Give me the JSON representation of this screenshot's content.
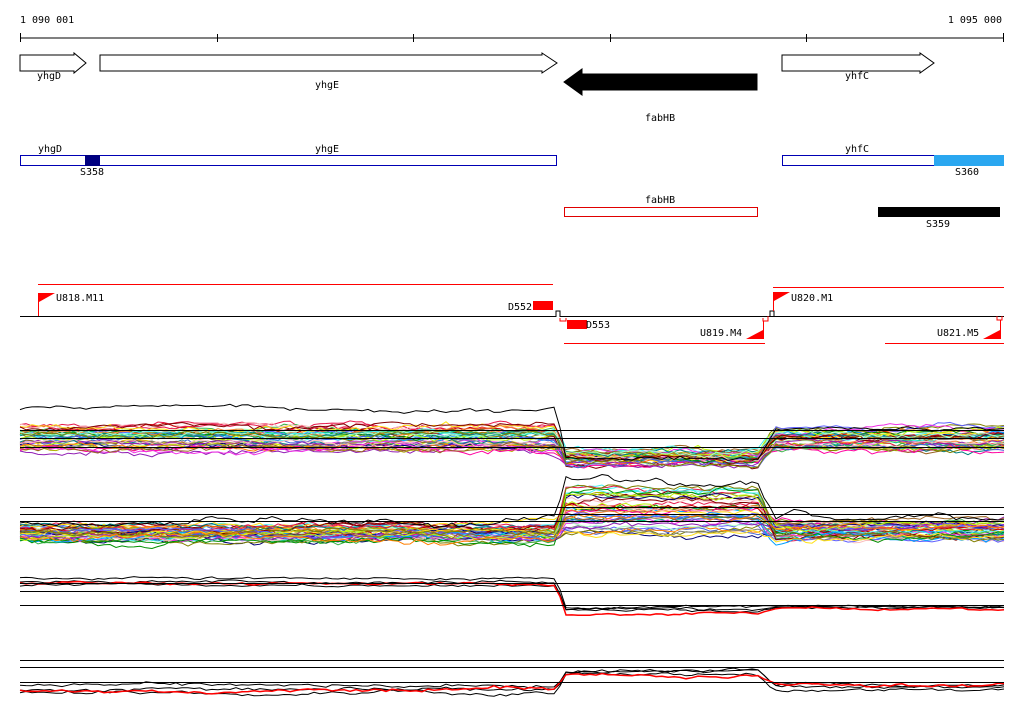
{
  "ruler": {
    "start_label": "1 090 001",
    "end_label": "1 095 000"
  },
  "genes": [
    {
      "name": "yhgD",
      "strand": "+",
      "style": "outline"
    },
    {
      "name": "yhgE",
      "strand": "+",
      "style": "outline"
    },
    {
      "name": "fabHB",
      "strand": "-",
      "style": "filled"
    },
    {
      "name": "yhfC",
      "strand": "+",
      "style": "outline"
    }
  ],
  "region_labels": [
    "yhgD",
    "yhgE",
    "yhfC",
    "fabHB"
  ],
  "features": [
    {
      "name": "S358",
      "color": "#000080"
    },
    {
      "name": "S360",
      "color": "#2aa7f0"
    },
    {
      "name": "S359",
      "color": "#000000"
    }
  ],
  "segments": [
    "U818.M11",
    "D552",
    "D553",
    "U819.M4",
    "U820.M1",
    "U821.M5"
  ],
  "colors": {
    "gene_outline": "#0000b4",
    "fabHB_outline": "#e00000",
    "segment": "#ff0000",
    "black": "#000000"
  }
}
